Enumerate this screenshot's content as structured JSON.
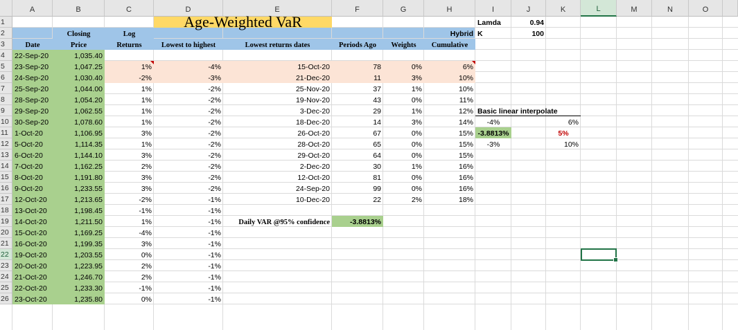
{
  "columns": [
    "A",
    "B",
    "C",
    "D",
    "E",
    "F",
    "G",
    "H",
    "I",
    "J",
    "K",
    "L",
    "M",
    "N",
    "O"
  ],
  "selected_column": "L",
  "rows": [
    "1",
    "2",
    "3",
    "4",
    "5",
    "6",
    "7",
    "8",
    "9",
    "10",
    "11",
    "12",
    "13",
    "14",
    "15",
    "16",
    "17",
    "18",
    "19",
    "20",
    "21",
    "22",
    "23",
    "24",
    "25",
    "26"
  ],
  "selected_row": "22",
  "title": "Age-Weighted VaR",
  "params": {
    "lamda_label": "Lamda",
    "lamda_value": "0.94",
    "hybrid_label": "Hybrid",
    "k_label": "K",
    "k_value": "100"
  },
  "headers": {
    "date": "Date",
    "closing_l1": "Closing",
    "closing_l2": "Price",
    "log_l1": "Log",
    "log_l2": "Returns",
    "lowest": "Lowest to highest",
    "lowest_dates": "Lowest returns dates",
    "periods_ago": "Periods Ago",
    "weights": "Weights",
    "cumulative": "Cumulative"
  },
  "dates": [
    "22-Sep-20",
    "23-Sep-20",
    "24-Sep-20",
    "25-Sep-20",
    "28-Sep-20",
    "29-Sep-20",
    "30-Sep-20",
    "1-Oct-20",
    "5-Oct-20",
    "6-Oct-20",
    "7-Oct-20",
    "8-Oct-20",
    "9-Oct-20",
    "12-Oct-20",
    "13-Oct-20",
    "14-Oct-20",
    "15-Oct-20",
    "16-Oct-20",
    "19-Oct-20",
    "20-Oct-20",
    "21-Oct-20",
    "22-Oct-20",
    "23-Oct-20"
  ],
  "prices": [
    "1,035.40",
    "1,047.25",
    "1,030.40",
    "1,044.00",
    "1,054.20",
    "1,062.55",
    "1,078.60",
    "1,106.95",
    "1,114.35",
    "1,144.10",
    "1,162.25",
    "1,191.80",
    "1,233.55",
    "1,213.65",
    "1,198.45",
    "1,211.50",
    "1,169.25",
    "1,199.35",
    "1,203.55",
    "1,223.95",
    "1,246.70",
    "1,233.30",
    "1,235.80"
  ],
  "log_returns": [
    "",
    "1%",
    "-2%",
    "1%",
    "1%",
    "1%",
    "1%",
    "3%",
    "1%",
    "3%",
    "2%",
    "3%",
    "3%",
    "-2%",
    "-1%",
    "1%",
    "-4%",
    "3%",
    "0%",
    "2%",
    "2%",
    "-1%",
    "0%"
  ],
  "lowest": [
    "",
    "-4%",
    "-3%",
    "-2%",
    "-2%",
    "-2%",
    "-2%",
    "-2%",
    "-2%",
    "-2%",
    "-2%",
    "-2%",
    "-2%",
    "-1%",
    "-1%",
    "-1%",
    "-1%",
    "-1%",
    "-1%",
    "-1%",
    "-1%",
    "-1%",
    "-1%"
  ],
  "lowest_dates": [
    "15-Oct-20",
    "21-Dec-20",
    "25-Nov-20",
    "19-Nov-20",
    "3-Dec-20",
    "18-Dec-20",
    "26-Oct-20",
    "28-Oct-20",
    "29-Oct-20",
    "2-Dec-20",
    "12-Oct-20",
    "24-Sep-20",
    "10-Dec-20"
  ],
  "periods_ago": [
    "78",
    "11",
    "37",
    "43",
    "29",
    "14",
    "67",
    "65",
    "64",
    "30",
    "81",
    "99",
    "22"
  ],
  "weights": [
    "0%",
    "3%",
    "1%",
    "0%",
    "1%",
    "3%",
    "0%",
    "0%",
    "0%",
    "1%",
    "0%",
    "0%",
    "2%"
  ],
  "cumulative": [
    "6%",
    "10%",
    "10%",
    "11%",
    "12%",
    "14%",
    "15%",
    "15%",
    "15%",
    "16%",
    "16%",
    "16%",
    "18%"
  ],
  "interp": {
    "title": "Basic linear interpolate",
    "r1_left": "-4%",
    "r1_right": "6%",
    "r2_left": "-3.8813%",
    "r2_right": "5%",
    "r3_left": "-3%",
    "r3_right": "10%"
  },
  "var_label": "Daily VAR @95% confidence",
  "var_value": "-3.8813%",
  "colors": {
    "green": "#a9d08e",
    "blue": "#9fc5e8",
    "peach": "#fce4d6",
    "yellow": "#ffd966",
    "red": "#c00000",
    "excel_green": "#217346"
  }
}
